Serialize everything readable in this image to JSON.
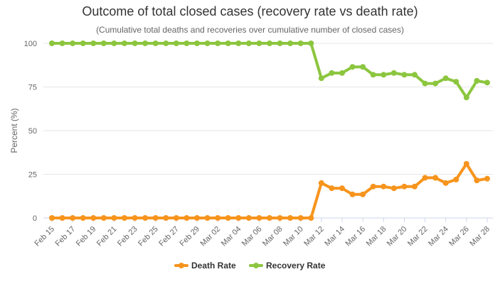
{
  "chart_data": {
    "type": "line",
    "title": "Outcome of total closed cases (recovery rate vs death rate)",
    "subtitle": "(Cumulative total deaths and recoveries over cumulative number of closed cases)",
    "ylabel": "Percent (%)",
    "xlabel": "",
    "ylim": [
      0,
      100
    ],
    "yticks": [
      0,
      25,
      50,
      75,
      100
    ],
    "grid": true,
    "legend_position": "bottom-center",
    "x": [
      "Feb 15",
      "Feb 16",
      "Feb 17",
      "Feb 18",
      "Feb 19",
      "Feb 20",
      "Feb 21",
      "Feb 22",
      "Feb 23",
      "Feb 24",
      "Feb 25",
      "Feb 26",
      "Feb 27",
      "Feb 28",
      "Feb 29",
      "Mar 01",
      "Mar 02",
      "Mar 03",
      "Mar 04",
      "Mar 05",
      "Mar 06",
      "Mar 07",
      "Mar 08",
      "Mar 09",
      "Mar 10",
      "Mar 11",
      "Mar 12",
      "Mar 13",
      "Mar 14",
      "Mar 15",
      "Mar 16",
      "Mar 17",
      "Mar 18",
      "Mar 19",
      "Mar 20",
      "Mar 21",
      "Mar 22",
      "Mar 23",
      "Mar 24",
      "Mar 25",
      "Mar 26",
      "Mar 27",
      "Mar 28"
    ],
    "x_tick_labels": [
      "Feb 15",
      "Feb 17",
      "Feb 19",
      "Feb 21",
      "Feb 23",
      "Feb 25",
      "Feb 27",
      "Feb 29",
      "Mar 02",
      "Mar 04",
      "Mar 06",
      "Mar 08",
      "Mar 10",
      "Mar 12",
      "Mar 14",
      "Mar 16",
      "Mar 18",
      "Mar 20",
      "Mar 22",
      "Mar 24",
      "Mar 26",
      "Mar 28"
    ],
    "series": [
      {
        "name": "Death Rate",
        "color": "#f7941d",
        "values": [
          0,
          0,
          0,
          0,
          0,
          0,
          0,
          0,
          0,
          0,
          0,
          0,
          0,
          0,
          0,
          0,
          0,
          0,
          0,
          0,
          0,
          0,
          0,
          0,
          0,
          0,
          20,
          17,
          17,
          13.5,
          13.5,
          18,
          18,
          17,
          18,
          18,
          23,
          23,
          20,
          22,
          31,
          21.5,
          22.5
        ]
      },
      {
        "name": "Recovery Rate",
        "color": "#8cc63f",
        "values": [
          100,
          100,
          100,
          100,
          100,
          100,
          100,
          100,
          100,
          100,
          100,
          100,
          100,
          100,
          100,
          100,
          100,
          100,
          100,
          100,
          100,
          100,
          100,
          100,
          100,
          100,
          80,
          83,
          83,
          86.5,
          86.5,
          82,
          82,
          83,
          82,
          82,
          77,
          77,
          80,
          78,
          69,
          78.5,
          77.5
        ]
      }
    ]
  }
}
